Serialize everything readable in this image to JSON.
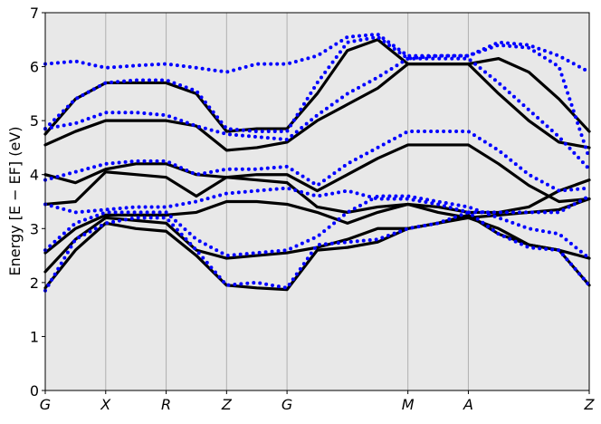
{
  "chart_data": {
    "type": "band",
    "ylabel": "Energy [E − EF] (eV)",
    "background": "#e8e8e8",
    "grid": "x",
    "xlim": [
      0,
      9
    ],
    "ylim": [
      0,
      7
    ],
    "yticks": [
      0,
      1,
      2,
      3,
      4,
      5,
      6,
      7
    ],
    "xticks": [
      {
        "value": 0,
        "label": "G"
      },
      {
        "value": 1,
        "label": "X"
      },
      {
        "value": 2,
        "label": "R"
      },
      {
        "value": 3,
        "label": "Z"
      },
      {
        "value": 4,
        "label": "G"
      },
      {
        "value": 6,
        "label": "M"
      },
      {
        "value": 7,
        "label": "A"
      },
      {
        "value": 9,
        "label": "Z"
      }
    ],
    "x": [
      0,
      0.5,
      1,
      1.5,
      2,
      2.5,
      3,
      3.5,
      4,
      4.5,
      5,
      5.5,
      6,
      6.5,
      7,
      7.5,
      8,
      8.5,
      9
    ],
    "series": [
      {
        "color": "#000000",
        "style": "solid",
        "values": [
          1.9,
          2.6,
          3.1,
          3.0,
          2.95,
          2.5,
          1.95,
          1.9,
          1.87,
          2.6,
          2.65,
          2.75,
          3.0,
          3.1,
          3.25,
          2.9,
          2.7,
          2.6,
          1.95
        ]
      },
      {
        "color": "#000000",
        "style": "solid",
        "values": [
          2.2,
          2.8,
          3.2,
          3.15,
          3.1,
          2.6,
          2.45,
          2.5,
          2.55,
          2.65,
          2.8,
          3.0,
          3.0,
          3.1,
          3.2,
          3.0,
          2.7,
          2.6,
          2.45
        ]
      },
      {
        "color": "#000000",
        "style": "solid",
        "values": [
          2.55,
          3.0,
          3.25,
          3.25,
          3.25,
          3.3,
          3.5,
          3.5,
          3.45,
          3.3,
          3.1,
          3.3,
          3.45,
          3.3,
          3.2,
          3.25,
          3.3,
          3.35,
          3.55
        ]
      },
      {
        "color": "#000000",
        "style": "solid",
        "values": [
          3.45,
          3.5,
          4.05,
          4.0,
          3.95,
          3.6,
          3.95,
          3.9,
          3.85,
          3.4,
          3.3,
          3.4,
          3.45,
          3.4,
          3.3,
          3.3,
          3.4,
          3.7,
          3.9
        ]
      },
      {
        "color": "#000000",
        "style": "solid",
        "values": [
          4.0,
          3.85,
          4.1,
          4.2,
          4.2,
          4.0,
          3.95,
          4.0,
          4.0,
          3.7,
          4.0,
          4.3,
          4.55,
          4.55,
          4.55,
          4.2,
          3.8,
          3.5,
          3.55
        ]
      },
      {
        "color": "#000000",
        "style": "solid",
        "values": [
          4.55,
          4.8,
          5.0,
          5.0,
          5.0,
          4.9,
          4.45,
          4.5,
          4.6,
          5.0,
          5.3,
          5.6,
          6.05,
          6.05,
          6.05,
          5.5,
          5.0,
          4.6,
          4.5
        ]
      },
      {
        "color": "#000000",
        "style": "solid",
        "values": [
          4.75,
          5.4,
          5.7,
          5.7,
          5.7,
          5.5,
          4.8,
          4.85,
          4.85,
          5.5,
          6.3,
          6.5,
          6.05,
          6.05,
          6.05,
          6.15,
          5.9,
          5.4,
          4.8
        ]
      },
      {
        "color": "#0000ff",
        "style": "dotted",
        "values": [
          1.85,
          2.8,
          3.1,
          3.2,
          3.2,
          2.6,
          1.95,
          2.0,
          1.9,
          2.7,
          2.75,
          2.8,
          3.0,
          3.1,
          3.3,
          2.9,
          2.65,
          2.6,
          1.95
        ]
      },
      {
        "color": "#0000ff",
        "style": "dotted",
        "values": [
          2.6,
          3.1,
          3.3,
          3.3,
          3.3,
          2.8,
          2.5,
          2.55,
          2.6,
          2.85,
          3.3,
          3.6,
          3.6,
          3.5,
          3.4,
          3.2,
          3.0,
          2.9,
          2.45
        ]
      },
      {
        "color": "#0000ff",
        "style": "dotted",
        "values": [
          3.45,
          3.3,
          3.35,
          3.4,
          3.4,
          3.5,
          3.65,
          3.7,
          3.75,
          3.6,
          3.7,
          3.55,
          3.55,
          3.45,
          3.3,
          3.3,
          3.3,
          3.3,
          3.6
        ]
      },
      {
        "color": "#0000ff",
        "style": "dotted",
        "values": [
          3.9,
          4.05,
          4.2,
          4.25,
          4.25,
          4.0,
          4.1,
          4.1,
          4.15,
          3.8,
          4.2,
          4.5,
          4.8,
          4.8,
          4.8,
          4.45,
          4.0,
          3.7,
          3.75
        ]
      },
      {
        "color": "#0000ff",
        "style": "dotted",
        "values": [
          4.85,
          4.95,
          5.15,
          5.15,
          5.1,
          4.9,
          4.75,
          4.7,
          4.65,
          5.1,
          5.5,
          5.8,
          6.15,
          6.15,
          6.15,
          5.7,
          5.2,
          4.7,
          4.1
        ]
      },
      {
        "color": "#0000ff",
        "style": "dotted",
        "values": [
          4.85,
          5.4,
          5.7,
          5.75,
          5.75,
          5.55,
          4.85,
          4.8,
          4.8,
          5.7,
          6.45,
          6.55,
          6.15,
          6.2,
          6.2,
          6.4,
          6.35,
          6.0,
          4.3
        ]
      },
      {
        "color": "#0000ff",
        "style": "dotted",
        "values": [
          6.05,
          6.1,
          5.98,
          6.02,
          6.05,
          5.98,
          5.9,
          6.05,
          6.05,
          6.2,
          6.55,
          6.6,
          6.2,
          6.2,
          6.2,
          6.45,
          6.4,
          6.2,
          5.9
        ]
      }
    ]
  }
}
